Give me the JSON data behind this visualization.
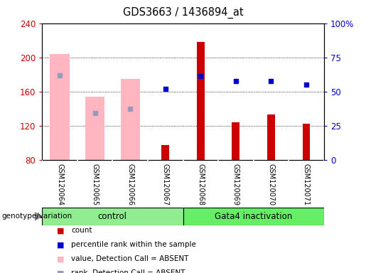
{
  "title": "GDS3663 / 1436894_at",
  "samples": [
    "GSM120064",
    "GSM120065",
    "GSM120066",
    "GSM120067",
    "GSM120068",
    "GSM120069",
    "GSM120070",
    "GSM120071"
  ],
  "groups": [
    {
      "label": "control",
      "samples_idx": [
        0,
        1,
        2,
        3
      ],
      "color": "#90EE90"
    },
    {
      "label": "Gata4 inactivation",
      "samples_idx": [
        4,
        5,
        6,
        7
      ],
      "color": "#66EE66"
    }
  ],
  "red_bars": [
    null,
    null,
    null,
    97,
    218,
    124,
    133,
    122
  ],
  "pink_bars": [
    204,
    154,
    175,
    null,
    null,
    null,
    null,
    null
  ],
  "blue_squares_left_scale": [
    null,
    null,
    null,
    163,
    178,
    172,
    172,
    168
  ],
  "blue_rank_absent_left_scale": [
    179,
    135,
    140,
    null,
    null,
    null,
    null,
    null
  ],
  "ylim_left": [
    80,
    240
  ],
  "ylim_right": [
    0,
    100
  ],
  "yticks_left": [
    80,
    120,
    160,
    200,
    240
  ],
  "yticks_right": [
    0,
    25,
    50,
    75,
    100
  ],
  "left_axis_color": "#cc0000",
  "right_axis_color": "#0000cc",
  "red_bar_color": "#cc0000",
  "pink_bar_color": "#FFB6C1",
  "blue_square_color": "#0000cc",
  "blue_rank_color": "#9999bb",
  "pink_bar_width": 0.55,
  "red_bar_width": 0.22,
  "legend_items": [
    {
      "label": "count",
      "color": "#cc0000"
    },
    {
      "label": "percentile rank within the sample",
      "color": "#0000cc"
    },
    {
      "label": "value, Detection Call = ABSENT",
      "color": "#FFB6C1"
    },
    {
      "label": "rank, Detection Call = ABSENT",
      "color": "#9999bb"
    }
  ],
  "plot_bg_color": "#ffffff",
  "sample_bg_color": "#d3d3d3",
  "separator_color": "#ffffff"
}
